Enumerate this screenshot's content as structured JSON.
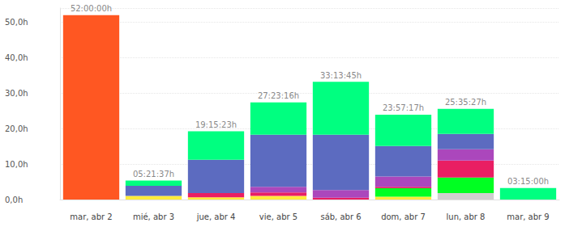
{
  "chart_data": {
    "type": "bar",
    "stacked": true,
    "grid": true,
    "categories": [
      "mar, abr 2",
      "mié, abr 3",
      "jue, abr 4",
      "vie, abr 5",
      "sáb, abr 6",
      "dom, abr 7",
      "lun, abr 8",
      "mar, abr 9"
    ],
    "series": [
      {
        "color": "#ff5722",
        "values": [
          52.0,
          null,
          null,
          null,
          null,
          null,
          null,
          null
        ]
      },
      {
        "color": "#cfcfcf",
        "values": [
          null,
          null,
          null,
          null,
          null,
          null,
          1.8,
          null
        ]
      },
      {
        "color": "#ffeb3b",
        "values": [
          null,
          1.0,
          0.6,
          1.0,
          null,
          0.8,
          null,
          null
        ]
      },
      {
        "color": "#00ff22",
        "values": [
          null,
          null,
          null,
          null,
          null,
          2.4,
          4.4,
          null
        ]
      },
      {
        "color": "#e91e63",
        "values": [
          null,
          null,
          1.2,
          1.0,
          0.5,
          0.4,
          4.8,
          null
        ]
      },
      {
        "color": "#ab47bc",
        "values": [
          null,
          null,
          null,
          1.6,
          2.2,
          2.9,
          3.2,
          null
        ]
      },
      {
        "color": "#5c6bc0",
        "values": [
          null,
          2.9,
          9.4,
          14.7,
          15.6,
          8.6,
          4.3,
          null
        ]
      },
      {
        "color": "#00ff80",
        "values": [
          null,
          1.46,
          8.06,
          9.09,
          14.93,
          8.85,
          7.09,
          3.25
        ]
      }
    ],
    "totals": [
      52.0,
      5.36,
      19.26,
      27.39,
      33.23,
      23.95,
      25.59,
      3.25
    ],
    "total_labels": [
      "52:00:00h",
      "05:21:37h",
      "19:15:23h",
      "27:23:16h",
      "33:13:45h",
      "23:57:17h",
      "25:35:27h",
      "03:15:00h"
    ],
    "ylim": [
      0,
      54
    ],
    "yticks": [
      {
        "value": 0,
        "label": "0,0h"
      },
      {
        "value": 10,
        "label": "10,0h"
      },
      {
        "value": 20,
        "label": "20,0h"
      },
      {
        "value": 30,
        "label": "30,0h"
      },
      {
        "value": 40,
        "label": "40,0h"
      },
      {
        "value": 50,
        "label": "50,0h"
      }
    ]
  }
}
